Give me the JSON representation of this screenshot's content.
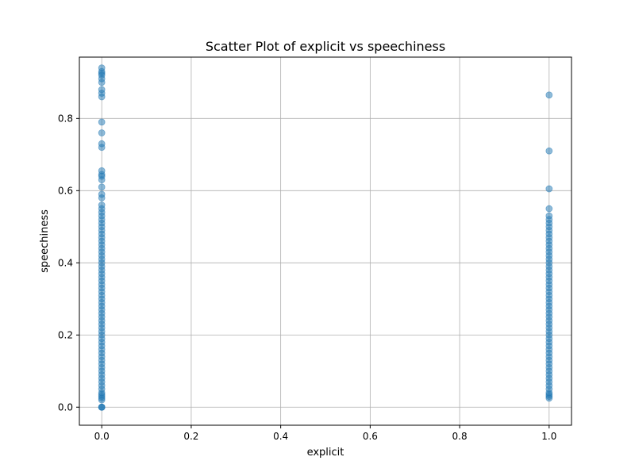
{
  "chart_data": {
    "type": "scatter",
    "title": "Scatter Plot of explicit vs speechiness",
    "xlabel": "explicit",
    "ylabel": "speechiness",
    "xlim": [
      -0.05,
      1.05
    ],
    "ylim": [
      -0.05,
      0.97
    ],
    "xticks": [
      0.0,
      0.2,
      0.4,
      0.6,
      0.8,
      1.0
    ],
    "xtick_labels": [
      "0.0",
      "0.2",
      "0.4",
      "0.6",
      "0.8",
      "1.0"
    ],
    "yticks": [
      0.0,
      0.2,
      0.4,
      0.6,
      0.8
    ],
    "ytick_labels": [
      "0.0",
      "0.2",
      "0.4",
      "0.6",
      "0.8"
    ],
    "grid": true,
    "marker_color": "#1f77b4",
    "marker_alpha": 0.5,
    "points": [
      {
        "x": 0,
        "y": 0.0
      },
      {
        "x": 0,
        "y": 0.0
      },
      {
        "x": 0,
        "y": 0.0
      },
      {
        "x": 0,
        "y": 0.02
      },
      {
        "x": 0,
        "y": 0.025
      },
      {
        "x": 0,
        "y": 0.03
      },
      {
        "x": 0,
        "y": 0.035
      },
      {
        "x": 0,
        "y": 0.04
      },
      {
        "x": 0,
        "y": 0.05
      },
      {
        "x": 0,
        "y": 0.06
      },
      {
        "x": 0,
        "y": 0.07
      },
      {
        "x": 0,
        "y": 0.08
      },
      {
        "x": 0,
        "y": 0.09
      },
      {
        "x": 0,
        "y": 0.1
      },
      {
        "x": 0,
        "y": 0.11
      },
      {
        "x": 0,
        "y": 0.12
      },
      {
        "x": 0,
        "y": 0.13
      },
      {
        "x": 0,
        "y": 0.14
      },
      {
        "x": 0,
        "y": 0.15
      },
      {
        "x": 0,
        "y": 0.16
      },
      {
        "x": 0,
        "y": 0.17
      },
      {
        "x": 0,
        "y": 0.18
      },
      {
        "x": 0,
        "y": 0.19
      },
      {
        "x": 0,
        "y": 0.2
      },
      {
        "x": 0,
        "y": 0.21
      },
      {
        "x": 0,
        "y": 0.22
      },
      {
        "x": 0,
        "y": 0.23
      },
      {
        "x": 0,
        "y": 0.24
      },
      {
        "x": 0,
        "y": 0.25
      },
      {
        "x": 0,
        "y": 0.26
      },
      {
        "x": 0,
        "y": 0.27
      },
      {
        "x": 0,
        "y": 0.28
      },
      {
        "x": 0,
        "y": 0.29
      },
      {
        "x": 0,
        "y": 0.3
      },
      {
        "x": 0,
        "y": 0.31
      },
      {
        "x": 0,
        "y": 0.32
      },
      {
        "x": 0,
        "y": 0.33
      },
      {
        "x": 0,
        "y": 0.34
      },
      {
        "x": 0,
        "y": 0.35
      },
      {
        "x": 0,
        "y": 0.36
      },
      {
        "x": 0,
        "y": 0.37
      },
      {
        "x": 0,
        "y": 0.38
      },
      {
        "x": 0,
        "y": 0.39
      },
      {
        "x": 0,
        "y": 0.4
      },
      {
        "x": 0,
        "y": 0.41
      },
      {
        "x": 0,
        "y": 0.42
      },
      {
        "x": 0,
        "y": 0.43
      },
      {
        "x": 0,
        "y": 0.44
      },
      {
        "x": 0,
        "y": 0.45
      },
      {
        "x": 0,
        "y": 0.46
      },
      {
        "x": 0,
        "y": 0.47
      },
      {
        "x": 0,
        "y": 0.48
      },
      {
        "x": 0,
        "y": 0.49
      },
      {
        "x": 0,
        "y": 0.5
      },
      {
        "x": 0,
        "y": 0.51
      },
      {
        "x": 0,
        "y": 0.52
      },
      {
        "x": 0,
        "y": 0.53
      },
      {
        "x": 0,
        "y": 0.54
      },
      {
        "x": 0,
        "y": 0.55
      },
      {
        "x": 0,
        "y": 0.56
      },
      {
        "x": 0,
        "y": 0.58
      },
      {
        "x": 0,
        "y": 0.59
      },
      {
        "x": 0,
        "y": 0.61
      },
      {
        "x": 0,
        "y": 0.63
      },
      {
        "x": 0,
        "y": 0.64
      },
      {
        "x": 0,
        "y": 0.645
      },
      {
        "x": 0,
        "y": 0.655
      },
      {
        "x": 0,
        "y": 0.72
      },
      {
        "x": 0,
        "y": 0.73
      },
      {
        "x": 0,
        "y": 0.76
      },
      {
        "x": 0,
        "y": 0.79
      },
      {
        "x": 0,
        "y": 0.86
      },
      {
        "x": 0,
        "y": 0.87
      },
      {
        "x": 0,
        "y": 0.88
      },
      {
        "x": 0,
        "y": 0.9
      },
      {
        "x": 0,
        "y": 0.91
      },
      {
        "x": 0,
        "y": 0.92
      },
      {
        "x": 0,
        "y": 0.925
      },
      {
        "x": 0,
        "y": 0.93
      },
      {
        "x": 0,
        "y": 0.94
      },
      {
        "x": 1,
        "y": 0.025
      },
      {
        "x": 1,
        "y": 0.03
      },
      {
        "x": 1,
        "y": 0.035
      },
      {
        "x": 1,
        "y": 0.04
      },
      {
        "x": 1,
        "y": 0.05
      },
      {
        "x": 1,
        "y": 0.06
      },
      {
        "x": 1,
        "y": 0.07
      },
      {
        "x": 1,
        "y": 0.08
      },
      {
        "x": 1,
        "y": 0.09
      },
      {
        "x": 1,
        "y": 0.1
      },
      {
        "x": 1,
        "y": 0.11
      },
      {
        "x": 1,
        "y": 0.12
      },
      {
        "x": 1,
        "y": 0.13
      },
      {
        "x": 1,
        "y": 0.14
      },
      {
        "x": 1,
        "y": 0.15
      },
      {
        "x": 1,
        "y": 0.16
      },
      {
        "x": 1,
        "y": 0.17
      },
      {
        "x": 1,
        "y": 0.18
      },
      {
        "x": 1,
        "y": 0.19
      },
      {
        "x": 1,
        "y": 0.2
      },
      {
        "x": 1,
        "y": 0.21
      },
      {
        "x": 1,
        "y": 0.22
      },
      {
        "x": 1,
        "y": 0.23
      },
      {
        "x": 1,
        "y": 0.24
      },
      {
        "x": 1,
        "y": 0.25
      },
      {
        "x": 1,
        "y": 0.26
      },
      {
        "x": 1,
        "y": 0.27
      },
      {
        "x": 1,
        "y": 0.28
      },
      {
        "x": 1,
        "y": 0.29
      },
      {
        "x": 1,
        "y": 0.3
      },
      {
        "x": 1,
        "y": 0.31
      },
      {
        "x": 1,
        "y": 0.32
      },
      {
        "x": 1,
        "y": 0.33
      },
      {
        "x": 1,
        "y": 0.34
      },
      {
        "x": 1,
        "y": 0.35
      },
      {
        "x": 1,
        "y": 0.36
      },
      {
        "x": 1,
        "y": 0.37
      },
      {
        "x": 1,
        "y": 0.38
      },
      {
        "x": 1,
        "y": 0.39
      },
      {
        "x": 1,
        "y": 0.4
      },
      {
        "x": 1,
        "y": 0.41
      },
      {
        "x": 1,
        "y": 0.42
      },
      {
        "x": 1,
        "y": 0.43
      },
      {
        "x": 1,
        "y": 0.44
      },
      {
        "x": 1,
        "y": 0.45
      },
      {
        "x": 1,
        "y": 0.46
      },
      {
        "x": 1,
        "y": 0.47
      },
      {
        "x": 1,
        "y": 0.48
      },
      {
        "x": 1,
        "y": 0.49
      },
      {
        "x": 1,
        "y": 0.5
      },
      {
        "x": 1,
        "y": 0.51
      },
      {
        "x": 1,
        "y": 0.52
      },
      {
        "x": 1,
        "y": 0.53
      },
      {
        "x": 1,
        "y": 0.55
      },
      {
        "x": 1,
        "y": 0.605
      },
      {
        "x": 1,
        "y": 0.71
      },
      {
        "x": 1,
        "y": 0.865
      }
    ]
  }
}
